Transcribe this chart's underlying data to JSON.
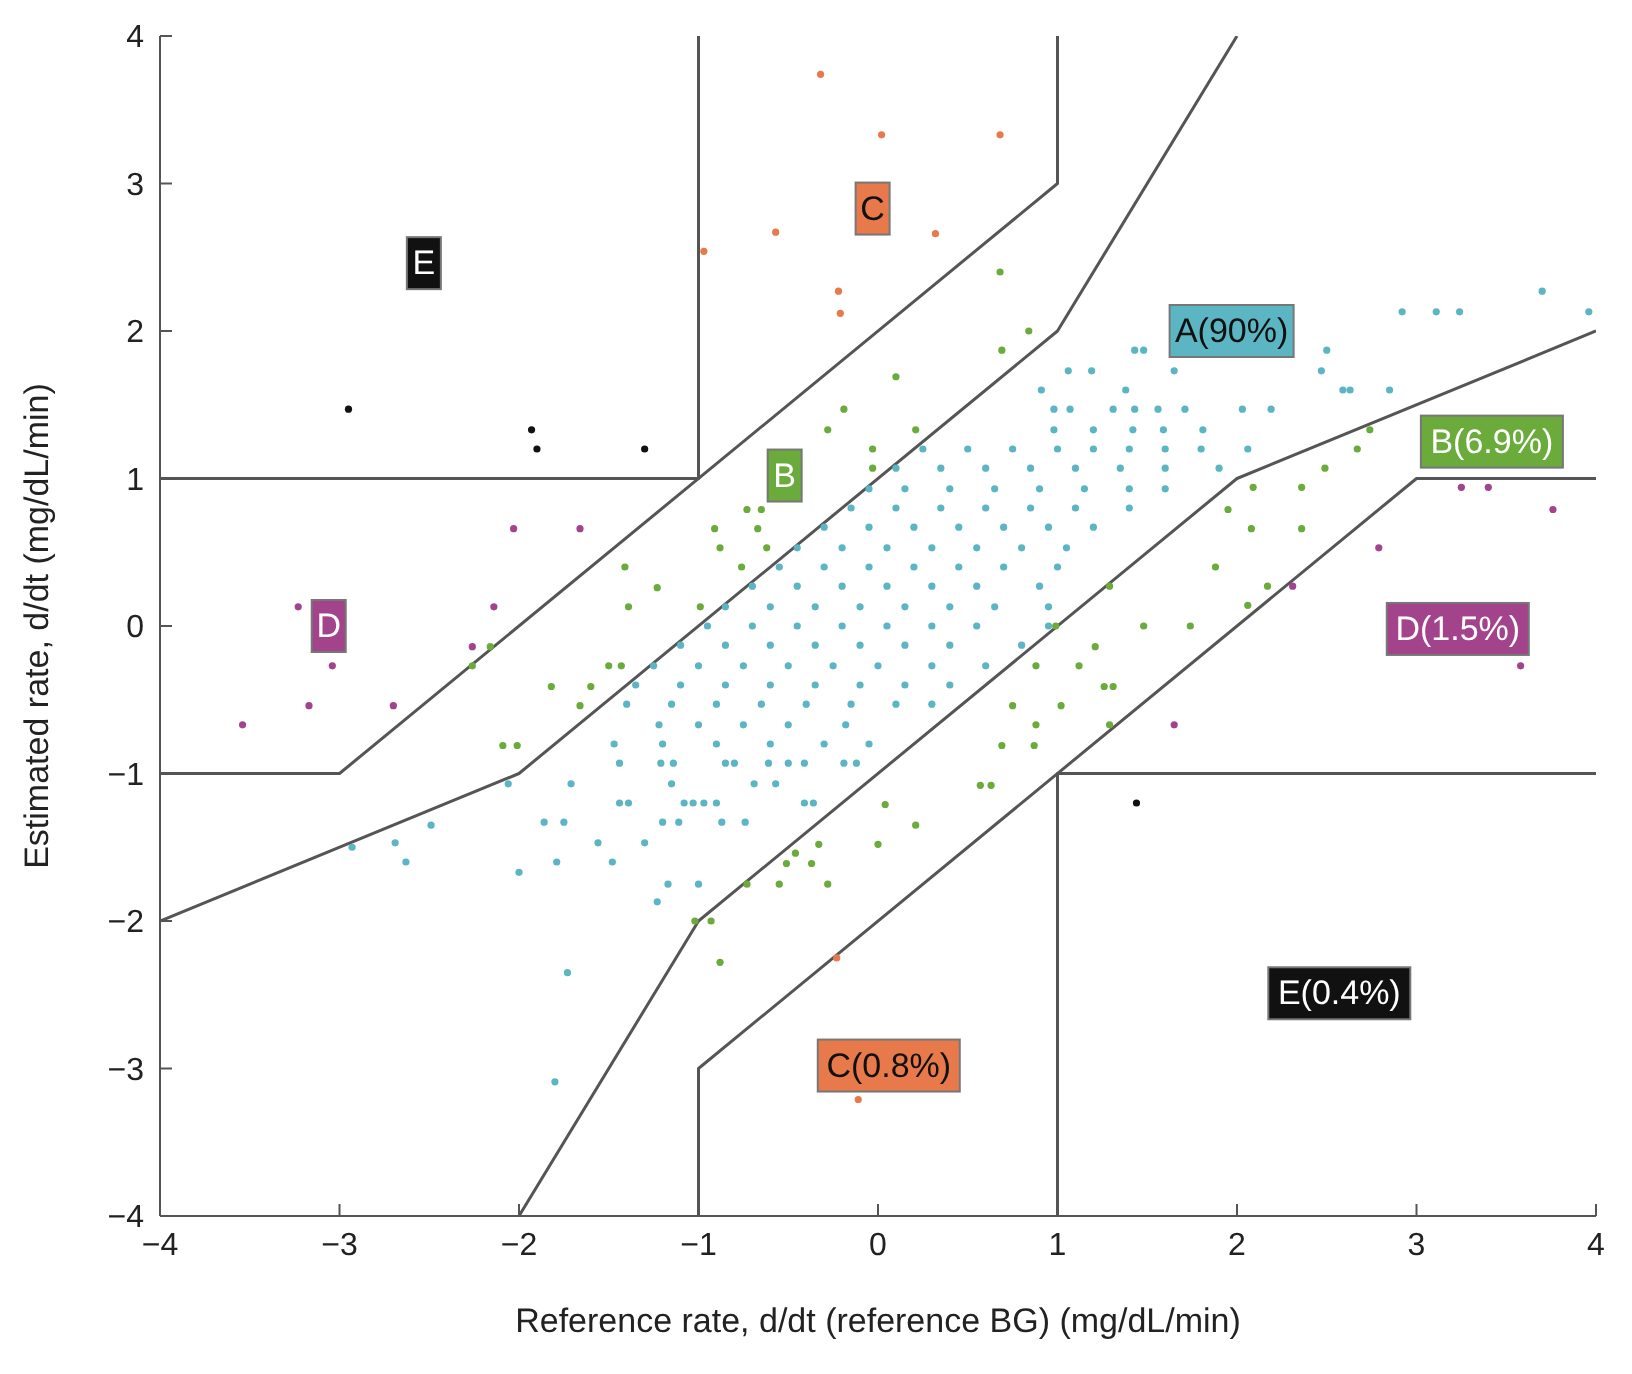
{
  "chart_data": {
    "type": "scatter",
    "xlabel": "Reference rate, d/dt (reference BG) (mg/dL/min)",
    "ylabel": "Estimated rate, d/dt (mg/dL/min)",
    "xlim": [
      -4,
      4
    ],
    "ylim": [
      -4,
      4
    ],
    "xticks": [
      -4,
      -3,
      -2,
      -1,
      0,
      1,
      2,
      3,
      4
    ],
    "yticks": [
      -4,
      -3,
      -2,
      -1,
      0,
      1,
      2,
      3,
      4
    ],
    "grid": false,
    "marker": "circle",
    "annotations": [
      "E",
      "C",
      "B",
      "D",
      "A(90%)",
      "B(6.9%)",
      "D(1.5%)",
      "C(0.8%)",
      "E(0.4%)"
    ],
    "series": [
      {
        "color": "#5bb5c3",
        "x": [
          3.7,
          2.92,
          3.11,
          3.24,
          3.96,
          1.43,
          1.48,
          2.5,
          1.06,
          1.19,
          1.65,
          2.47,
          0.91,
          1.38,
          2.59,
          2.63,
          2.85,
          0.98,
          1.07,
          1.31,
          1.43,
          1.56,
          1.71,
          2.03,
          2.19,
          0.98,
          1.2,
          1.42,
          1.59,
          1.81,
          0.25,
          0.5,
          0.75,
          1.0,
          1.2,
          1.4,
          1.6,
          1.8,
          2.06,
          0.1,
          0.35,
          0.6,
          0.85,
          1.1,
          1.35,
          1.6,
          1.9,
          -0.05,
          0.15,
          0.4,
          0.65,
          0.9,
          1.15,
          1.4,
          1.6,
          -0.15,
          0.1,
          0.35,
          0.6,
          0.85,
          1.1,
          1.4,
          -0.3,
          -0.05,
          0.2,
          0.45,
          0.7,
          0.95,
          1.2,
          -0.45,
          -0.2,
          0.05,
          0.3,
          0.55,
          0.8,
          1.05,
          -0.55,
          -0.3,
          -0.05,
          0.2,
          0.45,
          0.7,
          1.0,
          -0.7,
          -0.45,
          -0.2,
          0.05,
          0.3,
          0.55,
          0.9,
          -0.85,
          -0.6,
          -0.35,
          -0.1,
          0.15,
          0.4,
          0.65,
          0.95,
          -0.95,
          -0.7,
          -0.45,
          -0.2,
          0.05,
          0.3,
          0.55,
          0.95,
          -1.1,
          -0.85,
          -0.6,
          -0.35,
          -0.1,
          0.15,
          0.4,
          0.8,
          -1.25,
          -1.0,
          -0.75,
          -0.5,
          -0.25,
          0,
          0.3,
          0.6,
          -1.35,
          -1.1,
          -0.85,
          -0.6,
          -0.35,
          -0.1,
          0.15,
          0.4,
          -1.4,
          -1.15,
          -0.9,
          -0.65,
          -0.4,
          -0.15,
          0.1,
          0.3,
          -1.22,
          -1.0,
          -0.75,
          -0.5,
          -0.18,
          -1.47,
          -1.2,
          -0.9,
          -0.6,
          -0.3,
          -0.05,
          -1.44,
          -1.21,
          -1.14,
          -0.85,
          -0.8,
          -0.61,
          -0.5,
          -0.41,
          -0.19,
          -0.12,
          -2.06,
          -1.71,
          -1.15,
          -0.69,
          -0.57,
          -1.44,
          -1.39,
          -1.08,
          -1.03,
          -0.97,
          -0.9,
          -0.41,
          -0.36,
          -2.49,
          -1.86,
          -1.75,
          -1.2,
          -1.11,
          -0.87,
          -0.74,
          -2.93,
          -2.69,
          -1.56,
          -1.3,
          -2.63,
          -1.79,
          -1.48,
          -2.0,
          -1.17,
          -1.0,
          -1.23,
          -1.73,
          -1.8
        ],
        "values": [
          2.27,
          2.13,
          2.13,
          2.13,
          2.13,
          1.87,
          1.87,
          1.87,
          1.73,
          1.73,
          1.73,
          1.73,
          1.6,
          1.6,
          1.6,
          1.6,
          1.6,
          1.47,
          1.47,
          1.47,
          1.47,
          1.47,
          1.47,
          1.47,
          1.47,
          1.33,
          1.33,
          1.33,
          1.33,
          1.33,
          1.2,
          1.2,
          1.2,
          1.2,
          1.2,
          1.2,
          1.2,
          1.2,
          1.2,
          1.07,
          1.07,
          1.07,
          1.07,
          1.07,
          1.07,
          1.07,
          1.07,
          0.93,
          0.93,
          0.93,
          0.93,
          0.93,
          0.93,
          0.93,
          0.93,
          0.8,
          0.8,
          0.8,
          0.8,
          0.8,
          0.8,
          0.8,
          0.67,
          0.67,
          0.67,
          0.67,
          0.67,
          0.67,
          0.67,
          0.53,
          0.53,
          0.53,
          0.53,
          0.53,
          0.53,
          0.53,
          0.4,
          0.4,
          0.4,
          0.4,
          0.4,
          0.4,
          0.4,
          0.27,
          0.27,
          0.27,
          0.27,
          0.27,
          0.27,
          0.27,
          0.13,
          0.13,
          0.13,
          0.13,
          0.13,
          0.13,
          0.13,
          0.13,
          0,
          0,
          0,
          0,
          0,
          0,
          0,
          0,
          -0.13,
          -0.13,
          -0.13,
          -0.13,
          -0.13,
          -0.13,
          -0.13,
          -0.13,
          -0.27,
          -0.27,
          -0.27,
          -0.27,
          -0.27,
          -0.27,
          -0.27,
          -0.27,
          -0.4,
          -0.4,
          -0.4,
          -0.4,
          -0.4,
          -0.4,
          -0.4,
          -0.4,
          -0.53,
          -0.53,
          -0.53,
          -0.53,
          -0.53,
          -0.53,
          -0.53,
          -0.53,
          -0.67,
          -0.67,
          -0.67,
          -0.67,
          -0.67,
          -0.8,
          -0.8,
          -0.8,
          -0.8,
          -0.8,
          -0.8,
          -0.93,
          -0.93,
          -0.93,
          -0.93,
          -0.93,
          -0.93,
          -0.93,
          -0.93,
          -0.93,
          -0.93,
          -1.07,
          -1.07,
          -1.07,
          -1.07,
          -1.07,
          -1.2,
          -1.2,
          -1.2,
          -1.2,
          -1.2,
          -1.2,
          -1.2,
          -1.2,
          -1.35,
          -1.33,
          -1.33,
          -1.33,
          -1.33,
          -1.33,
          -1.33,
          -1.5,
          -1.47,
          -1.47,
          -1.47,
          -1.6,
          -1.6,
          -1.6,
          -1.67,
          -1.75,
          -1.75,
          -1.87,
          -2.35,
          -3.09
        ]
      },
      {
        "color": "#6aab3c",
        "x": [
          -0.19,
          -0.28,
          -0.73,
          -0.65,
          -0.91,
          -0.67,
          -0.88,
          -0.62,
          -0.76,
          -1.41,
          -1.23,
          -1.39,
          -0.99,
          0.68,
          0.84,
          0.69,
          0.1,
          0.21,
          -0.03,
          -0.03,
          2.74,
          2.67,
          2.49,
          2.09,
          2.36,
          1.95,
          2.08,
          2.36,
          1.88,
          2.17,
          2.06,
          1.48,
          1.74,
          1.29,
          -2.16,
          -2.26,
          -1.82,
          -1.6,
          -1.5,
          -1.43,
          -1.66,
          -2.09,
          -2.01,
          -0.33,
          -0.46,
          -0.51,
          -0.37,
          -0.55,
          -0.28,
          -0.73,
          -1.02,
          -0.93,
          -0.88,
          0.99,
          1.21,
          1.12,
          0.88,
          1.26,
          1.31,
          0.75,
          1.02,
          0.88,
          1.29,
          0.69,
          0.87,
          0.57,
          0.63,
          0.04,
          0.21,
          0.0
        ],
        "values": [
          1.47,
          1.33,
          0.79,
          0.79,
          0.66,
          0.66,
          0.53,
          0.53,
          0.4,
          0.4,
          0.26,
          0.13,
          0.13,
          2.4,
          2.0,
          1.87,
          1.69,
          1.33,
          1.2,
          1.07,
          1.33,
          1.2,
          1.07,
          0.94,
          0.94,
          0.79,
          0.66,
          0.66,
          0.4,
          0.27,
          0.14,
          0.0,
          0.0,
          0.27,
          -0.14,
          -0.27,
          -0.41,
          -0.41,
          -0.27,
          -0.27,
          -0.54,
          -0.81,
          -0.81,
          -1.48,
          -1.54,
          -1.61,
          -1.61,
          -1.75,
          -1.75,
          -1.75,
          -2.0,
          -2.0,
          -2.28,
          0.0,
          -0.14,
          -0.27,
          -0.27,
          -0.41,
          -0.41,
          -0.54,
          -0.54,
          -0.67,
          -0.67,
          -0.81,
          -0.81,
          -1.08,
          -1.08,
          -1.21,
          -1.35,
          -1.48
        ]
      },
      {
        "color": "#e8794b",
        "x": [
          -0.32,
          -0.57,
          -0.97,
          -0.22,
          -0.21,
          0.02,
          0.68,
          0.32,
          -0.23,
          -0.11
        ],
        "values": [
          3.74,
          2.67,
          2.54,
          2.27,
          2.12,
          3.33,
          3.33,
          2.66,
          -2.25,
          -3.21
        ]
      },
      {
        "color": "#a2438c",
        "x": [
          -2.03,
          -1.66,
          -3.23,
          -2.14,
          -2.26,
          -3.04,
          -3.17,
          -2.7,
          -3.54,
          3.25,
          3.4,
          3.76,
          2.79,
          2.31,
          3.58,
          1.65
        ],
        "values": [
          0.66,
          0.66,
          0.13,
          0.13,
          -0.14,
          -0.27,
          -0.54,
          -0.54,
          -0.67,
          0.94,
          0.94,
          0.79,
          0.53,
          0.27,
          -0.27,
          -0.67
        ]
      },
      {
        "color": "#111111",
        "x": [
          -2.95,
          -1.93,
          -1.9,
          -1.3,
          1.44
        ],
        "values": [
          1.47,
          1.33,
          1.2,
          1.2,
          -1.2
        ]
      },
      {
        "type": "line",
        "marker": "none",
        "color": "#555555",
        "x": [
          -4,
          -1,
          -1
        ],
        "values": [
          1,
          1,
          4
        ]
      },
      {
        "type": "line",
        "marker": "none",
        "color": "#555555",
        "x": [
          -4,
          -3,
          1,
          1
        ],
        "values": [
          -1,
          -1,
          3,
          4
        ]
      },
      {
        "type": "line",
        "marker": "none",
        "color": "#555555",
        "x": [
          -4,
          -2,
          1,
          2
        ],
        "values": [
          -2,
          -1,
          2,
          4
        ]
      },
      {
        "type": "line",
        "marker": "none",
        "color": "#555555",
        "x": [
          -2,
          -1,
          2,
          4
        ],
        "values": [
          -4,
          -2,
          1,
          2
        ]
      },
      {
        "type": "line",
        "marker": "none",
        "color": "#555555",
        "x": [
          -1,
          -1,
          3,
          4
        ],
        "values": [
          -4,
          -3,
          1,
          1
        ]
      },
      {
        "type": "line",
        "marker": "none",
        "color": "#555555",
        "x": [
          1,
          1,
          4
        ],
        "values": [
          -4,
          -1,
          -1
        ]
      }
    ]
  }
}
